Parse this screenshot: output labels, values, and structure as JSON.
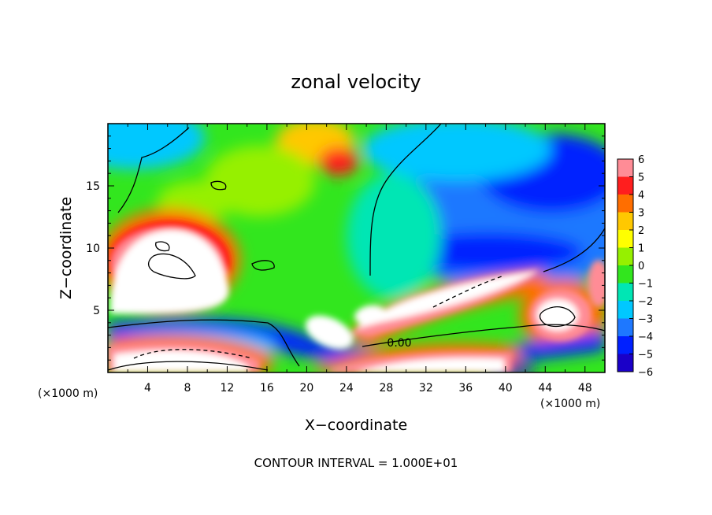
{
  "chart_data": {
    "type": "heatmap",
    "title": "zonal velocity",
    "xlabel": "X−coordinate",
    "ylabel": "Z−coordinate",
    "x_unit_left": "(×1000 m)",
    "x_unit_right": "(×1000 m)",
    "xlim": [
      0,
      50
    ],
    "ylim": [
      0,
      20
    ],
    "x_ticks": [
      4,
      8,
      12,
      16,
      20,
      24,
      28,
      32,
      36,
      40,
      44,
      48
    ],
    "y_ticks": [
      5,
      10,
      15
    ],
    "colorbar_ticks": [
      "6",
      "5",
      "4",
      "3",
      "2",
      "1",
      "0",
      "−1",
      "−2",
      "−3",
      "−4",
      "−5",
      "−6"
    ],
    "colorbar_range": [
      -6,
      6
    ],
    "contour_label": "0.00",
    "footer": "CONTOUR INTERVAL = 1.000E+01",
    "colors": {
      "v-6": "#6a0dad",
      "v-5": "#1a00c8",
      "v-4": "#0020ff",
      "v-3": "#1e78ff",
      "v-2": "#00c8ff",
      "v-1": "#00e6b4",
      "v0": "#32e61e",
      "v1": "#96f000",
      "v2": "#ffff00",
      "v3": "#ffc800",
      "v4": "#ff6e00",
      "v5": "#ff1e1e",
      "v6": "#ff8c96",
      "sat": "#ffffff"
    }
  }
}
